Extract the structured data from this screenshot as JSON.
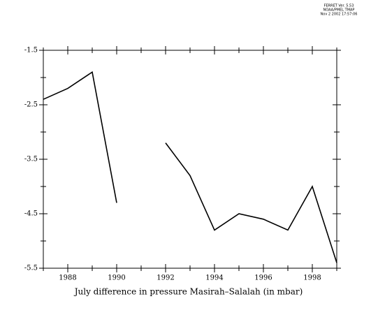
{
  "header": [
    "FERRET Ver. 5.53",
    "NOAA/PMEL TMAP",
    "Nov  2 2002 17:57:06"
  ],
  "chart_data": {
    "type": "line",
    "x_label": "July difference in pressure Masirah–Salalah (in mbar)",
    "x": [
      1987,
      1988,
      1989,
      1990,
      1991,
      1992,
      1993,
      1994,
      1995,
      1996,
      1997,
      1998,
      1999
    ],
    "series": [
      {
        "color": "#000000",
        "values": [
          -2.4,
          -2.2,
          -1.9,
          -4.3,
          null,
          -3.2,
          -3.8,
          -4.8,
          -4.5,
          -4.6,
          -4.8,
          -4.0,
          -5.4
        ]
      }
    ],
    "xlim": [
      1987,
      1999
    ],
    "xticks": [
      1988,
      1990,
      1992,
      1994,
      1996,
      1998
    ],
    "xminorticks": [
      1987,
      1989,
      1991,
      1993,
      1995,
      1997,
      1999
    ],
    "ylim": [
      -5.5,
      -1.5
    ],
    "yticks": [
      -1.5,
      -2.5,
      -3.5,
      -4.5,
      -5.5
    ],
    "yminorticks": [
      -2,
      -3,
      -4,
      -5
    ]
  }
}
